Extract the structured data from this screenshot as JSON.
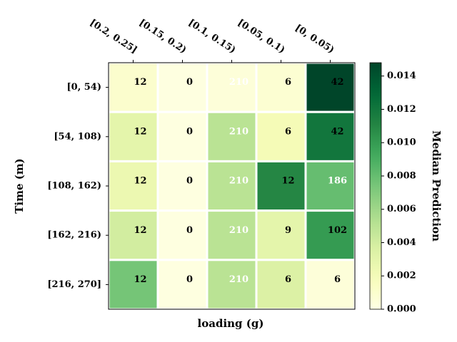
{
  "chart_data": {
    "type": "heatmap",
    "x_label": "loading (g)",
    "y_label": "Time (m)",
    "colorbar_label": "Median Prediction",
    "colormap": "YlGn",
    "x_categories": [
      "[0.2, 0.25]",
      "[0.15, 0.2)",
      "[0.1, 0.15)",
      "[0.05, 0.1)",
      "[0, 0.05)"
    ],
    "y_categories": [
      "[0, 54)",
      "[54, 108)",
      "[108, 162)",
      "[162, 216)",
      "[216, 270]"
    ],
    "values": [
      [
        0.001,
        0.0002,
        0.0005,
        0.0008,
        0.0148
      ],
      [
        0.003,
        0.0002,
        0.005,
        0.002,
        0.012
      ],
      [
        0.0025,
        0.0002,
        0.005,
        0.011,
        0.008
      ],
      [
        0.004,
        0.0002,
        0.005,
        0.003,
        0.01
      ],
      [
        0.0075,
        0.0002,
        0.005,
        0.0035,
        0.0005
      ]
    ],
    "cell_labels": [
      [
        12,
        0,
        210,
        6,
        42
      ],
      [
        12,
        0,
        210,
        6,
        42
      ],
      [
        12,
        0,
        210,
        12,
        186
      ],
      [
        12,
        0,
        210,
        9,
        102
      ],
      [
        12,
        0,
        210,
        6,
        6
      ]
    ],
    "label_colors": [
      [
        "#000000",
        "#000000",
        "#ffffff",
        "#000000",
        "#000000"
      ],
      [
        "#000000",
        "#000000",
        "#ffffff",
        "#000000",
        "#000000"
      ],
      [
        "#000000",
        "#000000",
        "#ffffff",
        "#000000",
        "#ffffff"
      ],
      [
        "#000000",
        "#000000",
        "#ffffff",
        "#000000",
        "#000000"
      ],
      [
        "#000000",
        "#000000",
        "#ffffff",
        "#000000",
        "#000000"
      ]
    ],
    "vlim": [
      0,
      0.0148
    ],
    "vticks": [
      {
        "value": 0,
        "label": "0.000"
      },
      {
        "value": 0.002,
        "label": "0.002"
      },
      {
        "value": 0.004,
        "label": "0.004"
      },
      {
        "value": 0.006,
        "label": "0.006"
      },
      {
        "value": 0.008,
        "label": "0.008"
      },
      {
        "value": 0.01,
        "label": "0.010"
      },
      {
        "value": 0.012,
        "label": "0.012"
      },
      {
        "value": 0.014,
        "label": "0.014"
      }
    ]
  }
}
